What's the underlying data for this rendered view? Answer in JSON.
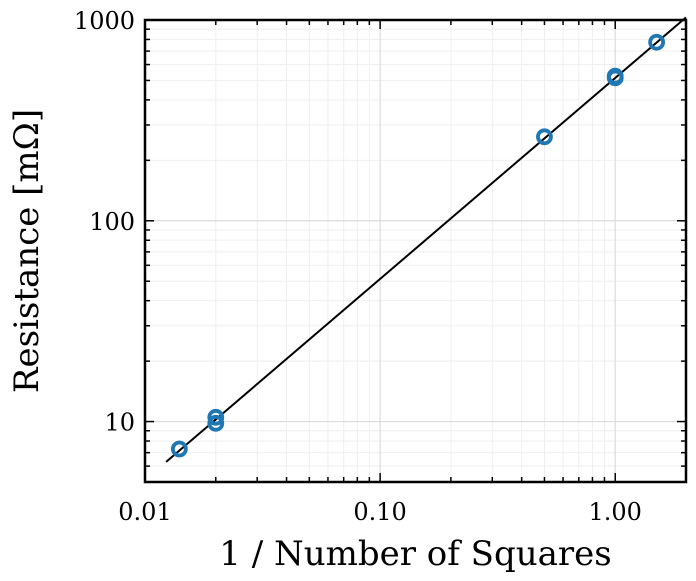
{
  "chart_data": {
    "type": "scatter",
    "title": "",
    "xlabel": "1 / Number of Squares",
    "ylabel": "Resistance [mΩ]",
    "xscale": "log",
    "yscale": "log",
    "xlim": [
      0.01,
      2.0
    ],
    "ylim": [
      5,
      1000
    ],
    "grid": true,
    "x_ticks": [
      {
        "value": 0.01,
        "label": "0.01"
      },
      {
        "value": 0.1,
        "label": "0.10"
      },
      {
        "value": 1.0,
        "label": "1.00"
      }
    ],
    "y_ticks": [
      {
        "value": 10,
        "label": "10"
      },
      {
        "value": 100,
        "label": "100"
      },
      {
        "value": 1000,
        "label": "1000"
      }
    ],
    "series": [
      {
        "color": "#1f77b4",
        "marker": "open-circle",
        "points": [
          {
            "x": 0.014,
            "y": 7.3
          },
          {
            "x": 0.02,
            "y": 9.8
          },
          {
            "x": 0.02,
            "y": 10.5
          },
          {
            "x": 0.5,
            "y": 262
          },
          {
            "x": 1.0,
            "y": 515
          },
          {
            "x": 1.0,
            "y": 525
          },
          {
            "x": 1.5,
            "y": 775
          }
        ]
      }
    ],
    "fit_line": {
      "color": "#000000",
      "points": [
        {
          "x": 0.0123,
          "y": 6.3
        },
        {
          "x": 2.0,
          "y": 1030
        }
      ]
    }
  }
}
